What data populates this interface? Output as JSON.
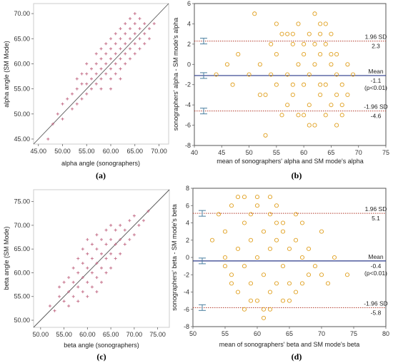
{
  "chart_data": [
    {
      "panel": "(a)",
      "type": "scatter",
      "title": "",
      "xlabel": "alpha angle (sonographers)",
      "ylabel": "alpha angle (SM Mode)",
      "xlim": [
        44,
        72
      ],
      "ylim": [
        44,
        72
      ],
      "x_ticks": [
        "45.00",
        "50.00",
        "55.00",
        "60.00",
        "65.00",
        "70.00"
      ],
      "y_ticks": [
        "45.00",
        "50.00",
        "55.00",
        "60.00",
        "65.00",
        "70.00"
      ],
      "identity_line": true,
      "point_color": "#c97a92",
      "series": [
        {
          "x": [
            47,
            48,
            49,
            50,
            50,
            51,
            52,
            52,
            53,
            53,
            53,
            54,
            54,
            54,
            55,
            55,
            55,
            55,
            56,
            56,
            56,
            57,
            57,
            57,
            57,
            58,
            58,
            58,
            58,
            58,
            59,
            59,
            59,
            59,
            60,
            60,
            60,
            60,
            60,
            60,
            61,
            61,
            61,
            61,
            61,
            62,
            62,
            62,
            62,
            62,
            62,
            63,
            63,
            63,
            63,
            63,
            64,
            64,
            64,
            64,
            64,
            65,
            65,
            65,
            65,
            65,
            66,
            66,
            66,
            66,
            67,
            67,
            67,
            68,
            68,
            69
          ],
          "y": [
            45,
            48,
            50,
            52,
            49,
            53,
            51,
            54,
            52,
            55,
            57,
            53,
            56,
            58,
            54,
            56,
            58,
            60,
            55,
            57,
            59,
            56,
            58,
            60,
            62,
            57,
            59,
            61,
            63,
            55,
            58,
            60,
            62,
            64,
            57,
            59,
            61,
            63,
            65,
            55,
            58,
            60,
            62,
            64,
            66,
            59,
            61,
            63,
            65,
            67,
            57,
            60,
            62,
            64,
            66,
            68,
            61,
            63,
            65,
            67,
            69,
            62,
            64,
            66,
            68,
            70,
            63,
            65,
            67,
            69,
            64,
            66,
            68,
            65,
            67,
            68
          ]
        }
      ]
    },
    {
      "panel": "(b)",
      "type": "scatter",
      "title": "",
      "xlabel": "mean of sonographers' alpha and SM mode's alpha",
      "ylabel": "sonographers' alpha - SM mode's alpha",
      "xlim": [
        40,
        75
      ],
      "ylim": [
        -8,
        6
      ],
      "x_ticks": [
        40,
        45,
        50,
        55,
        60,
        65,
        70,
        75
      ],
      "y_ticks": [
        -8,
        -6,
        -4,
        -2,
        0,
        2,
        4,
        6
      ],
      "reference_lines": [
        {
          "name": "1.96 SD",
          "value": 2.3,
          "value_label": "2.3",
          "style": "dotted",
          "color": "#b23a2a"
        },
        {
          "name": "Mean",
          "value": -1.1,
          "value_label": "-1.1",
          "extra": "(p<0.01)",
          "style": "solid",
          "color": "#2b3a8a"
        },
        {
          "name": "-1.96 SD",
          "value": -4.6,
          "value_label": "-4.6",
          "style": "dotted",
          "color": "#b23a2a"
        }
      ],
      "point_color": "#e0a020",
      "series": [
        {
          "x": [
            44,
            46,
            47,
            48,
            50,
            51,
            52,
            53,
            54,
            55,
            55,
            56,
            57,
            57,
            58,
            58,
            59,
            59,
            60,
            60,
            60,
            61,
            61,
            61,
            62,
            62,
            62,
            63,
            63,
            63,
            64,
            64,
            64,
            65,
            65,
            65,
            66,
            66,
            66,
            67,
            67,
            68,
            68,
            69,
            52,
            55,
            58,
            61,
            64,
            67,
            56,
            59,
            62,
            65,
            54,
            57,
            60,
            63,
            66,
            53,
            58,
            63
          ],
          "y": [
            -1,
            0,
            -2,
            1,
            -1,
            5,
            0,
            -3,
            2,
            -2,
            1,
            3,
            -1,
            -4,
            2,
            -3,
            0,
            4,
            -2,
            1,
            -5,
            3,
            -1,
            -4,
            2,
            0,
            -6,
            1,
            -3,
            4,
            -2,
            2,
            -5,
            0,
            -4,
            3,
            -1,
            -3,
            1,
            -2,
            -5,
            0,
            -3,
            -1,
            -3,
            4,
            3,
            -6,
            4,
            -4,
            -5,
            -5,
            5,
            1,
            -1,
            3,
            2,
            -2,
            -6,
            -7,
            -2,
            3
          ]
        }
      ]
    },
    {
      "panel": "(c)",
      "type": "scatter",
      "title": "",
      "xlabel": "beta angle (sonographers)",
      "ylabel": "beta angle (SM Mode)",
      "xlim": [
        48.5,
        77.5
      ],
      "ylim": [
        48.5,
        77.5
      ],
      "x_ticks": [
        "50.00",
        "55.00",
        "60.00",
        "65.00",
        "70.00",
        "75.00"
      ],
      "y_ticks": [
        "50.00",
        "55.00",
        "60.00",
        "65.00",
        "70.00",
        "75.00"
      ],
      "identity_line": true,
      "point_color": "#c97a92",
      "series": [
        {
          "x": [
            52,
            53,
            54,
            54,
            55,
            55,
            56,
            56,
            56,
            57,
            57,
            57,
            58,
            58,
            58,
            58,
            59,
            59,
            59,
            59,
            60,
            60,
            60,
            60,
            60,
            61,
            61,
            61,
            61,
            62,
            62,
            62,
            62,
            62,
            63,
            63,
            63,
            63,
            64,
            64,
            64,
            64,
            65,
            65,
            65,
            65,
            66,
            66,
            66,
            67,
            67,
            67,
            68,
            68,
            69,
            69,
            70,
            70,
            71,
            72,
            73
          ],
          "y": [
            53,
            52,
            55,
            57,
            54,
            58,
            53,
            56,
            59,
            55,
            58,
            61,
            54,
            57,
            60,
            63,
            56,
            59,
            62,
            65,
            55,
            58,
            61,
            64,
            67,
            57,
            60,
            63,
            66,
            56,
            59,
            62,
            65,
            68,
            58,
            61,
            64,
            67,
            60,
            63,
            66,
            69,
            61,
            64,
            67,
            70,
            63,
            66,
            69,
            64,
            67,
            70,
            66,
            69,
            67,
            71,
            68,
            72,
            70,
            71,
            73
          ]
        }
      ]
    },
    {
      "panel": "(d)",
      "type": "scatter",
      "title": "",
      "xlabel": "mean of sonographers' beta and SM mode's beta",
      "ylabel": "sonographers' beta - SM mode's beta",
      "xlim": [
        50,
        80
      ],
      "ylim": [
        -8,
        8
      ],
      "x_ticks": [
        50,
        55,
        60,
        65,
        70,
        75,
        80
      ],
      "y_ticks": [
        -8,
        -6,
        -4,
        -2,
        0,
        2,
        4,
        6,
        8
      ],
      "reference_lines": [
        {
          "name": "1.96 SD",
          "value": 5.1,
          "value_label": "5.1",
          "style": "dotted",
          "color": "#b23a2a"
        },
        {
          "name": "Mean",
          "value": -0.4,
          "value_label": "-0.4",
          "extra": "(p<0.01)",
          "style": "solid",
          "color": "#2b3a8a"
        },
        {
          "name": "-1.96 SD",
          "value": -5.8,
          "value_label": "-5.8",
          "style": "dotted",
          "color": "#b23a2a"
        }
      ],
      "point_color": "#e0a020",
      "series": [
        {
          "x": [
            53,
            54,
            55,
            55,
            56,
            56,
            57,
            57,
            58,
            58,
            58,
            59,
            59,
            59,
            60,
            60,
            60,
            61,
            61,
            61,
            62,
            62,
            62,
            63,
            63,
            63,
            64,
            64,
            64,
            65,
            65,
            66,
            66,
            67,
            67,
            68,
            68,
            69,
            70,
            71,
            72,
            74,
            57,
            60,
            63,
            66,
            59,
            62,
            65,
            56,
            61,
            64,
            58,
            67,
            70,
            55,
            62
          ],
          "y": [
            2,
            5,
            0,
            3,
            -2,
            6,
            1,
            -4,
            4,
            -1,
            7,
            2,
            -3,
            5,
            0,
            -5,
            6,
            3,
            -2,
            -6,
            1,
            5,
            -4,
            2,
            -3,
            6,
            -1,
            3,
            -5,
            1,
            -3,
            2,
            -4,
            0,
            4,
            -2,
            1,
            -1,
            3,
            -3,
            0,
            -2,
            7,
            7,
            4,
            5,
            -5,
            -6,
            -5,
            -3,
            -7,
            4,
            -6,
            -3,
            -2,
            -1,
            7
          ]
        }
      ]
    }
  ]
}
